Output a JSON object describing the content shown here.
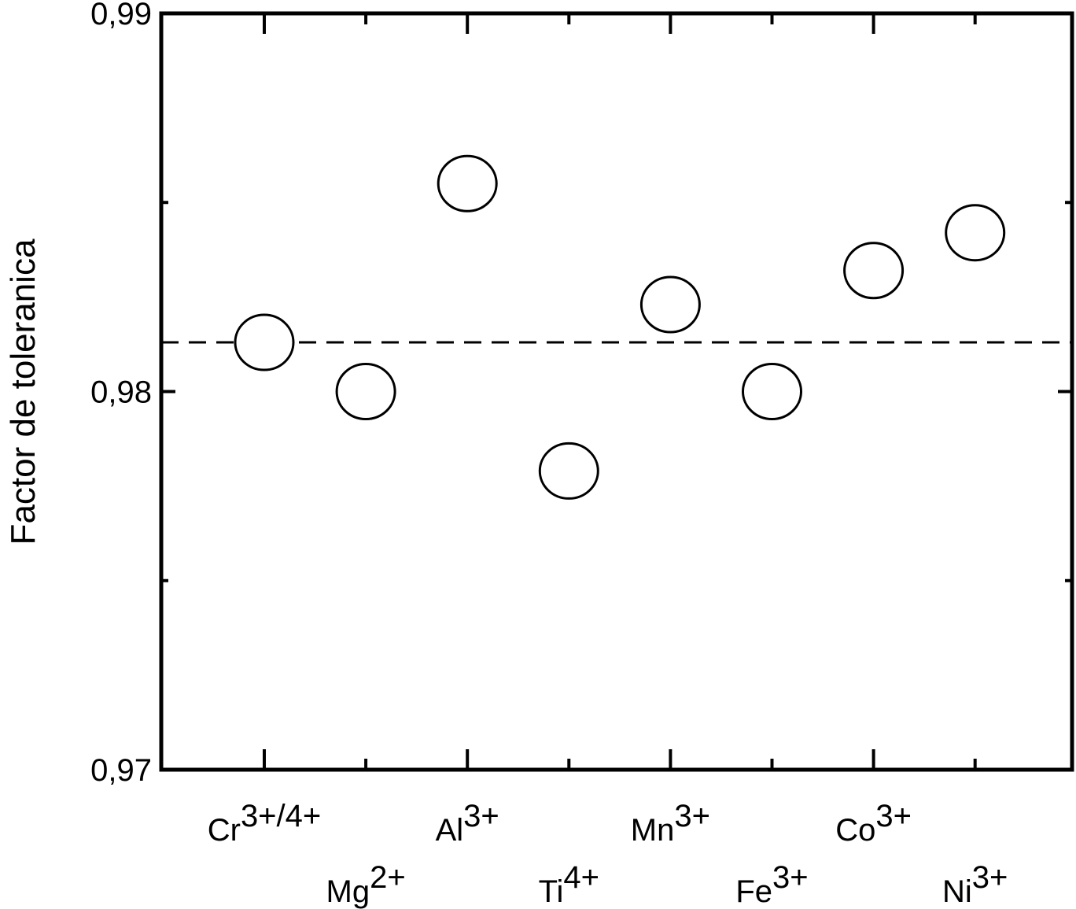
{
  "chart_data": {
    "type": "scatter",
    "title": "",
    "xlabel": "",
    "ylabel": "Factor de toleranica",
    "ylim": [
      0.97,
      0.99
    ],
    "yticks": [
      {
        "value": 0.97,
        "label": "0,97"
      },
      {
        "value": 0.98,
        "label": "0,98"
      },
      {
        "value": 0.99,
        "label": "0,99"
      }
    ],
    "categories": [
      {
        "base": "Cr",
        "sup": "3+/4+",
        "row": "top"
      },
      {
        "base": "Mg",
        "sup": "2+",
        "row": "bottom"
      },
      {
        "base": "Al",
        "sup": "3+",
        "row": "top"
      },
      {
        "base": "Ti",
        "sup": "4+",
        "row": "bottom"
      },
      {
        "base": "Mn",
        "sup": "3+",
        "row": "top"
      },
      {
        "base": "Fe",
        "sup": "3+",
        "row": "bottom"
      },
      {
        "base": "Co",
        "sup": "3+",
        "row": "top"
      },
      {
        "base": "Ni",
        "sup": "3+",
        "row": "bottom"
      }
    ],
    "values": [
      0.9813,
      0.98,
      0.9855,
      0.9779,
      0.9823,
      0.98,
      0.9832,
      0.9842
    ],
    "reference_line": {
      "value": 0.9813,
      "style": "dashed"
    },
    "marker": "open-circle",
    "grid": false
  }
}
